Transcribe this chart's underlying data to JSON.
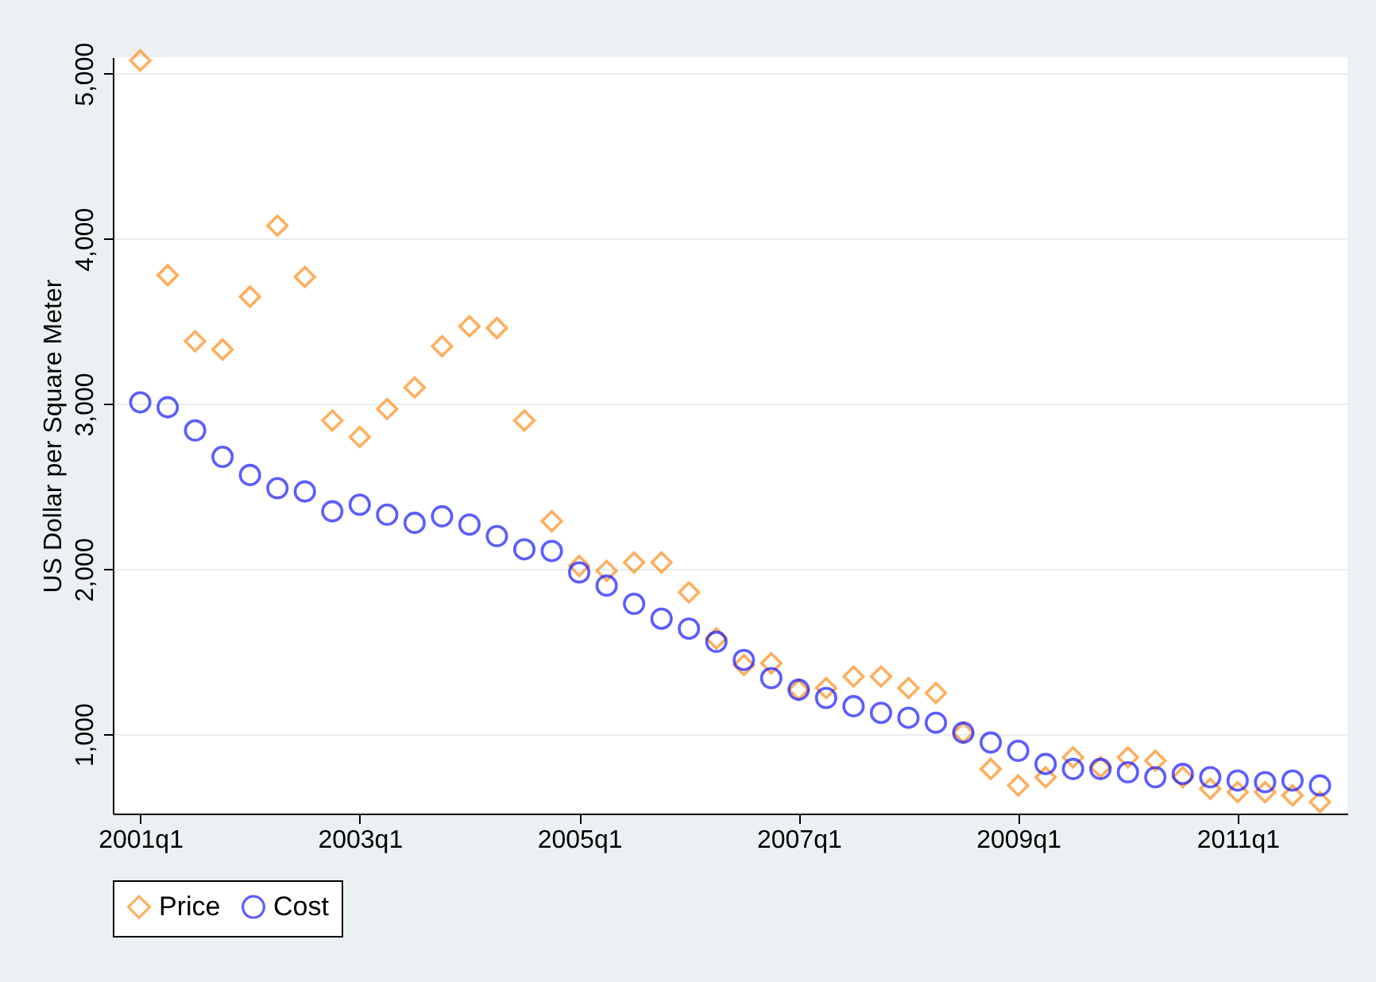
{
  "chart_data": {
    "type": "scatter",
    "ylabel": "US Dollar per Square Meter",
    "categories": [
      "2001q1",
      null,
      null,
      null,
      null,
      null,
      null,
      null,
      "2003q1",
      null,
      null,
      null,
      null,
      null,
      null,
      null,
      "2005q1",
      null,
      null,
      null,
      null,
      null,
      null,
      null,
      "2007q1",
      null,
      null,
      null,
      null,
      null,
      null,
      null,
      "2009q1",
      null,
      null,
      null,
      null,
      null,
      null,
      null,
      "2011q1",
      null,
      null,
      null
    ],
    "series": [
      {
        "name": "Price",
        "color": "#ff8c1a",
        "marker": "diamond",
        "values": [
          5080,
          3780,
          3380,
          3330,
          3650,
          4080,
          3770,
          2900,
          2800,
          2970,
          3100,
          3350,
          3470,
          3460,
          2900,
          2290,
          2020,
          1990,
          2040,
          2040,
          1860,
          1580,
          1420,
          1430,
          1270,
          1280,
          1350,
          1350,
          1280,
          1250,
          1010,
          790,
          690,
          740,
          860,
          800,
          860,
          840,
          740,
          670,
          650,
          650,
          630,
          590
        ]
      },
      {
        "name": "Cost",
        "color": "#1a1aff",
        "marker": "circle",
        "values": [
          3010,
          2980,
          2840,
          2680,
          2570,
          2490,
          2470,
          2350,
          2390,
          2330,
          2280,
          2320,
          2270,
          2200,
          2120,
          2110,
          1980,
          1900,
          1790,
          1700,
          1640,
          1560,
          1450,
          1340,
          1270,
          1220,
          1170,
          1130,
          1100,
          1070,
          1010,
          950,
          900,
          820,
          790,
          790,
          770,
          740,
          760,
          740,
          720,
          710,
          720,
          690
        ]
      }
    ],
    "ylim": [
      520,
      5100
    ],
    "yticks": [
      {
        "value": 1000,
        "label": "1,000"
      },
      {
        "value": 2000,
        "label": "2,000"
      },
      {
        "value": 3000,
        "label": "3,000"
      },
      {
        "value": 4000,
        "label": "4,000"
      },
      {
        "value": 5000,
        "label": "5,000"
      }
    ],
    "grid": "y",
    "legend": "bottom"
  }
}
